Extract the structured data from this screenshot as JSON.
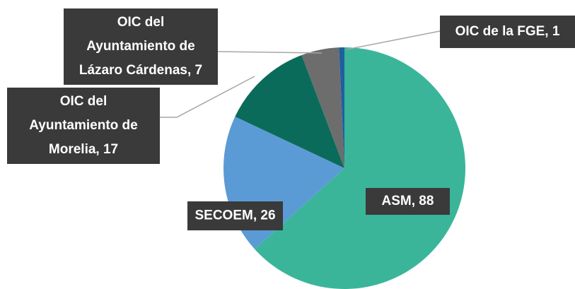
{
  "chart_data": {
    "type": "pie",
    "categories": [
      "ASM",
      "SECOEM",
      "OIC del Ayuntamiento de Morelia",
      "OIC del Ayuntamiento de Lázaro Cárdenas",
      "OIC de la FGE"
    ],
    "values": [
      88,
      26,
      17,
      7,
      1
    ],
    "value_labels": [
      [
        "ASM, 88"
      ],
      [
        "SECOEM, 26"
      ],
      [
        "OIC del",
        "Ayuntamiento de",
        "Morelia, 17"
      ],
      [
        "OIC del",
        "Ayuntamiento de",
        "Lázaro Cárdenas, 7"
      ],
      [
        "OIC de la FGE, 1"
      ]
    ],
    "colors": [
      "#3bb59a",
      "#5b9bd5",
      "#0b6b5a",
      "#6d6d6d",
      "#1f5fa0"
    ]
  }
}
